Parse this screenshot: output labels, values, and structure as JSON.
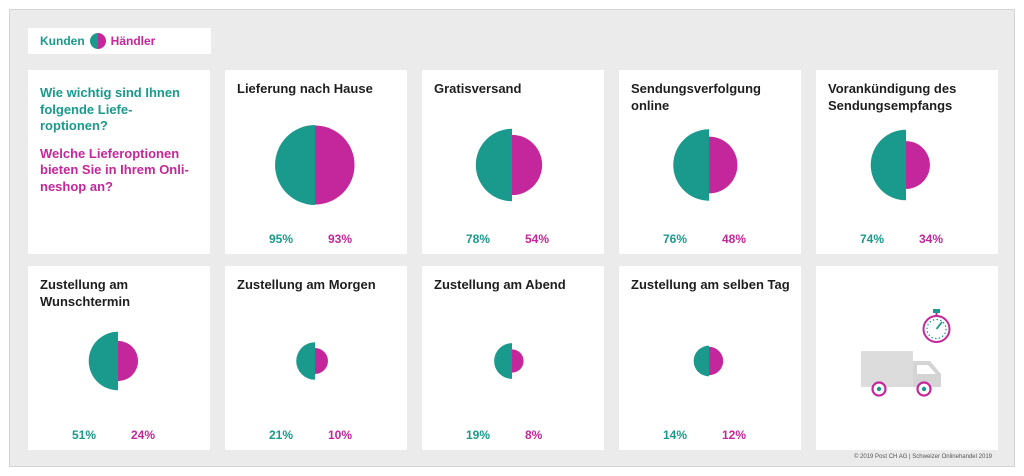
{
  "legend": {
    "customers": "Kunden",
    "merchants": "Händler"
  },
  "intro": {
    "question_customers": "Wie wichtig sind Ihnen folgende Liefe-roptionen?",
    "question_merchants": "Welche Lieferoptionen bieten Sie in Ihrem Onli-neshop an?"
  },
  "colors": {
    "customers": "#1a9a8c",
    "merchants": "#c4279b"
  },
  "chart_data": [
    {
      "type": "pie",
      "title": "Lieferung nach Hause",
      "series": [
        {
          "name": "Kunden",
          "value": 95
        },
        {
          "name": "Händler",
          "value": 93
        }
      ],
      "labels": [
        "95%",
        "93%"
      ]
    },
    {
      "type": "pie",
      "title": "Gratisversand",
      "series": [
        {
          "name": "Kunden",
          "value": 78
        },
        {
          "name": "Händler",
          "value": 54
        }
      ],
      "labels": [
        "78%",
        "54%"
      ]
    },
    {
      "type": "pie",
      "title": "Sendungsverfolgung online",
      "series": [
        {
          "name": "Kunden",
          "value": 76
        },
        {
          "name": "Händler",
          "value": 48
        }
      ],
      "labels": [
        "76%",
        "48%"
      ]
    },
    {
      "type": "pie",
      "title": "Vorankündigung des Sendungsempfangs",
      "series": [
        {
          "name": "Kunden",
          "value": 74
        },
        {
          "name": "Händler",
          "value": 34
        }
      ],
      "labels": [
        "74%",
        "34%"
      ]
    },
    {
      "type": "pie",
      "title": "Zustellung am Wunschtermin",
      "series": [
        {
          "name": "Kunden",
          "value": 51
        },
        {
          "name": "Händler",
          "value": 24
        }
      ],
      "labels": [
        "51%",
        "24%"
      ]
    },
    {
      "type": "pie",
      "title": "Zustellung am Morgen",
      "series": [
        {
          "name": "Kunden",
          "value": 21
        },
        {
          "name": "Händler",
          "value": 10
        }
      ],
      "labels": [
        "21%",
        "10%"
      ]
    },
    {
      "type": "pie",
      "title": "Zustellung am Abend",
      "series": [
        {
          "name": "Kunden",
          "value": 19
        },
        {
          "name": "Händler",
          "value": 8
        }
      ],
      "labels": [
        "19%",
        "8%"
      ]
    },
    {
      "type": "pie",
      "title": "Zustellung am selben Tag",
      "series": [
        {
          "name": "Kunden",
          "value": 14
        },
        {
          "name": "Händler",
          "value": 12
        }
      ],
      "labels": [
        "14%",
        "12%"
      ]
    }
  ],
  "illustration": {
    "icons": [
      "delivery-van-icon",
      "stopwatch-icon"
    ]
  },
  "footer": {
    "copyright": "© 2019 Post CH AG | Schweizer Onlinehandel 2019"
  }
}
